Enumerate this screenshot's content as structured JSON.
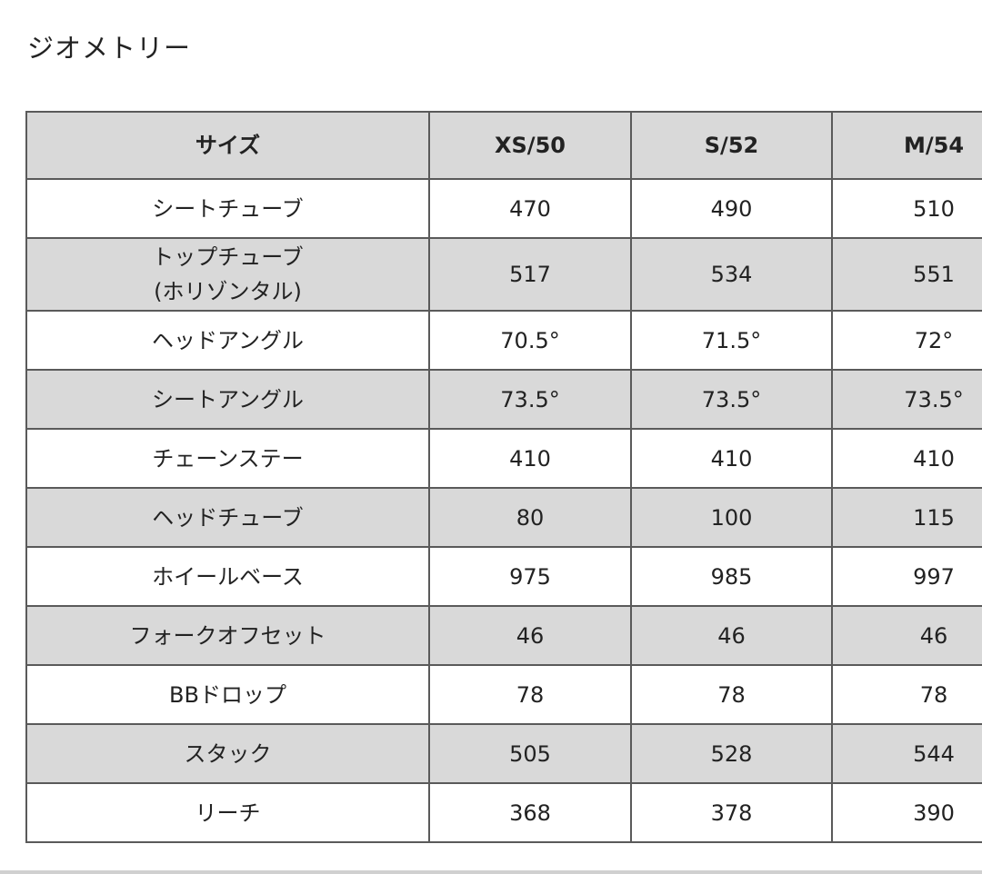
{
  "header": {
    "title": "ジオメトリー"
  },
  "table": {
    "header": [
      "サイズ",
      "XS/50",
      "S/52",
      "M/54"
    ],
    "rows": [
      [
        "シートチューブ",
        "470",
        "490",
        "510"
      ],
      [
        "トップチューブ\n(ホリゾンタル)",
        "517",
        "534",
        "551"
      ],
      [
        "ヘッドアングル",
        "70.5°",
        "71.5°",
        "72°"
      ],
      [
        "シートアングル",
        "73.5°",
        "73.5°",
        "73.5°"
      ],
      [
        "チェーンステー",
        "410",
        "410",
        "410"
      ],
      [
        "ヘッドチューブ",
        "80",
        "100",
        "115"
      ],
      [
        "ホイールベース",
        "975",
        "985",
        "997"
      ],
      [
        "フォークオフセット",
        "46",
        "46",
        "46"
      ],
      [
        "BBドロップ",
        "78",
        "78",
        "78"
      ],
      [
        "スタック",
        "505",
        "528",
        "544"
      ],
      [
        "リーチ",
        "368",
        "378",
        "390"
      ]
    ]
  }
}
